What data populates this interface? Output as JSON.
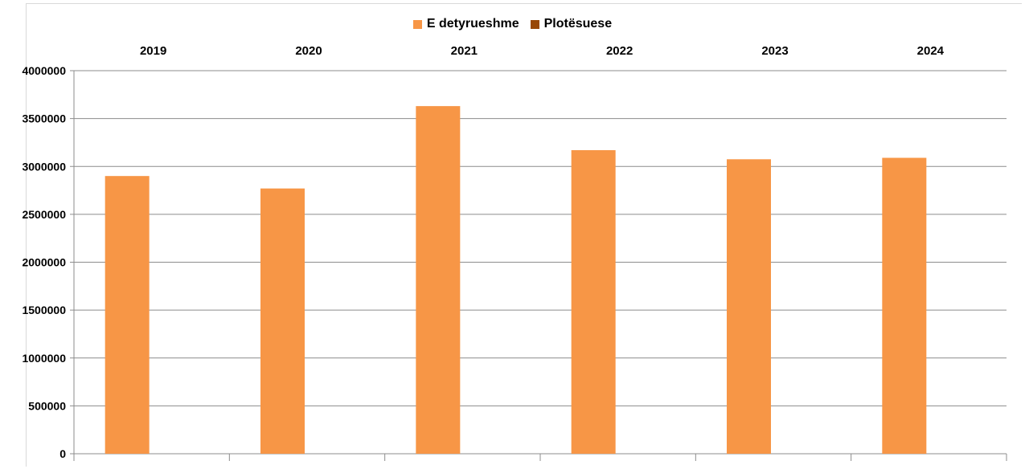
{
  "chart_data": {
    "type": "bar",
    "categories": [
      "2019",
      "2020",
      "2021",
      "2022",
      "2023",
      "2024"
    ],
    "series": [
      {
        "name": "E detyrueshme",
        "values": [
          2900000,
          2770000,
          3630000,
          3170000,
          3075000,
          3090000
        ],
        "color": "#f79646"
      },
      {
        "name": "Plotësuese",
        "values": [
          0,
          0,
          0,
          0,
          0,
          0
        ],
        "color": "#984807"
      }
    ],
    "yticks": [
      "0",
      "500000",
      "1000000",
      "1500000",
      "2000000",
      "2500000",
      "3000000",
      "3500000",
      "4000000"
    ],
    "ylim": [
      0,
      4000000
    ],
    "grid": true,
    "legend_position": "top",
    "category_labels_position": "top",
    "gridline_color": "#8c8c8c"
  }
}
